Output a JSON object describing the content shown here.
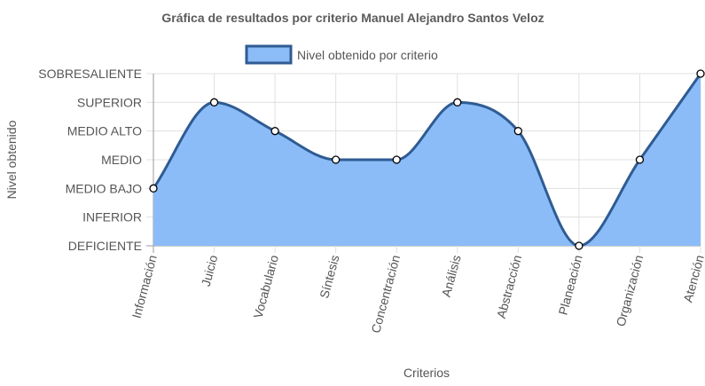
{
  "chart_data": {
    "type": "area",
    "title": "Gráfica de resultados por criterio Manuel Alejandro Santos Veloz",
    "xlabel": "Criterios",
    "ylabel": "Nivel obtenido",
    "y_levels": [
      "DEFICIENTE",
      "INFERIOR",
      "MEDIO BAJO",
      "MEDIO",
      "MEDIO ALTO",
      "SUPERIOR",
      "SOBRESALIENTE"
    ],
    "ylim": [
      0,
      6
    ],
    "categories": [
      "Información",
      "Juicio",
      "Vocabulario",
      "Síntesis",
      "Concentración",
      "Análisis",
      "Abstracción",
      "Planeación",
      "Organización",
      "Atención"
    ],
    "series": [
      {
        "name": "Nivel obtenido por criterio",
        "values": [
          2,
          5,
          4,
          3,
          3,
          5,
          4,
          0,
          3,
          6
        ]
      }
    ],
    "legend_position": "top",
    "grid": true,
    "colors": {
      "fill": "#8bbcf7",
      "line": "#2f5b93",
      "point_fill": "#ffffff",
      "point_stroke": "#000000",
      "grid": "#e0e0e0",
      "axis": "#9a9a9a"
    }
  }
}
